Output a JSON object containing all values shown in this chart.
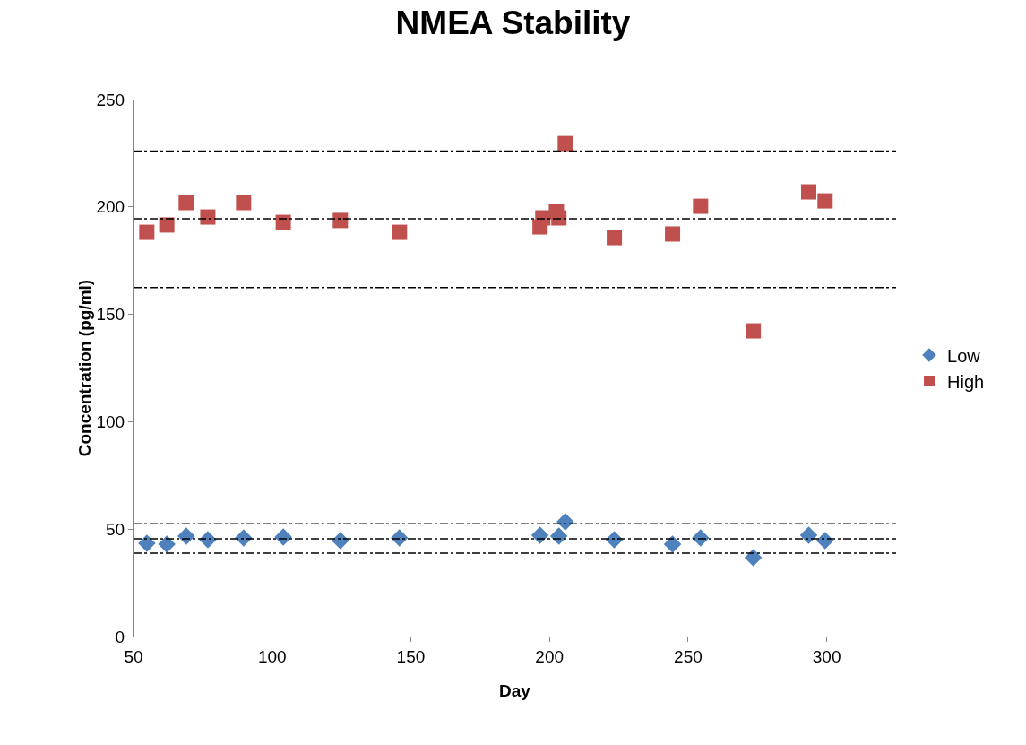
{
  "chart_data": {
    "type": "scatter",
    "title": "NMEA Stability",
    "xlabel": "Day",
    "ylabel": "Concentration (pg/ml)",
    "xlim": [
      50,
      325
    ],
    "xticks": [
      50,
      100,
      150,
      200,
      250,
      300
    ],
    "ylim": [
      0,
      250
    ],
    "yticks": [
      0,
      50,
      100,
      150,
      200,
      250
    ],
    "grid": false,
    "legend": "right",
    "series": [
      {
        "name": "Low",
        "color": "#4f81bd",
        "marker": "diamond",
        "x": [
          54.8,
          62,
          69,
          76.8,
          89.7,
          104,
          124.6,
          145.9,
          196.6,
          203.4,
          205.7,
          223.4,
          244.4,
          254.5,
          273.5,
          293.5,
          299.4
        ],
        "values": [
          43.4,
          43,
          46.7,
          45.1,
          45.9,
          46.3,
          44.7,
          45.9,
          47.2,
          46.7,
          53.4,
          45.1,
          43,
          45.9,
          36.7,
          47.2,
          44.7
        ]
      },
      {
        "name": "High",
        "color": "#c0504d",
        "marker": "square",
        "x": [
          54.8,
          62,
          69,
          76.8,
          89.7,
          104,
          124.6,
          145.9,
          196.6,
          197.6,
          202.5,
          203.4,
          205.7,
          223.4,
          244.4,
          254.5,
          273.5,
          293.5,
          299.4
        ],
        "values": [
          188.2,
          191.6,
          202,
          195.3,
          202,
          192.8,
          193.7,
          188.2,
          190.7,
          194.9,
          197.8,
          194.9,
          229.5,
          185.7,
          187.4,
          200.3,
          142.3,
          207,
          202.8
        ]
      }
    ],
    "ref_lines": [
      {
        "axis": "y",
        "value": 226,
        "color": "#000000",
        "line_style": "dashed"
      },
      {
        "axis": "y",
        "value": 194.5,
        "color": "#000000",
        "line_style": "dashed"
      },
      {
        "axis": "y",
        "value": 162.5,
        "color": "#000000",
        "line_style": "dashed"
      },
      {
        "axis": "y",
        "value": 52.5,
        "color": "#000000",
        "line_style": "dashed"
      },
      {
        "axis": "y",
        "value": 45.5,
        "color": "#000000",
        "line_style": "dashed"
      },
      {
        "axis": "y",
        "value": 38.8,
        "color": "#000000",
        "line_style": "dashed"
      }
    ]
  }
}
